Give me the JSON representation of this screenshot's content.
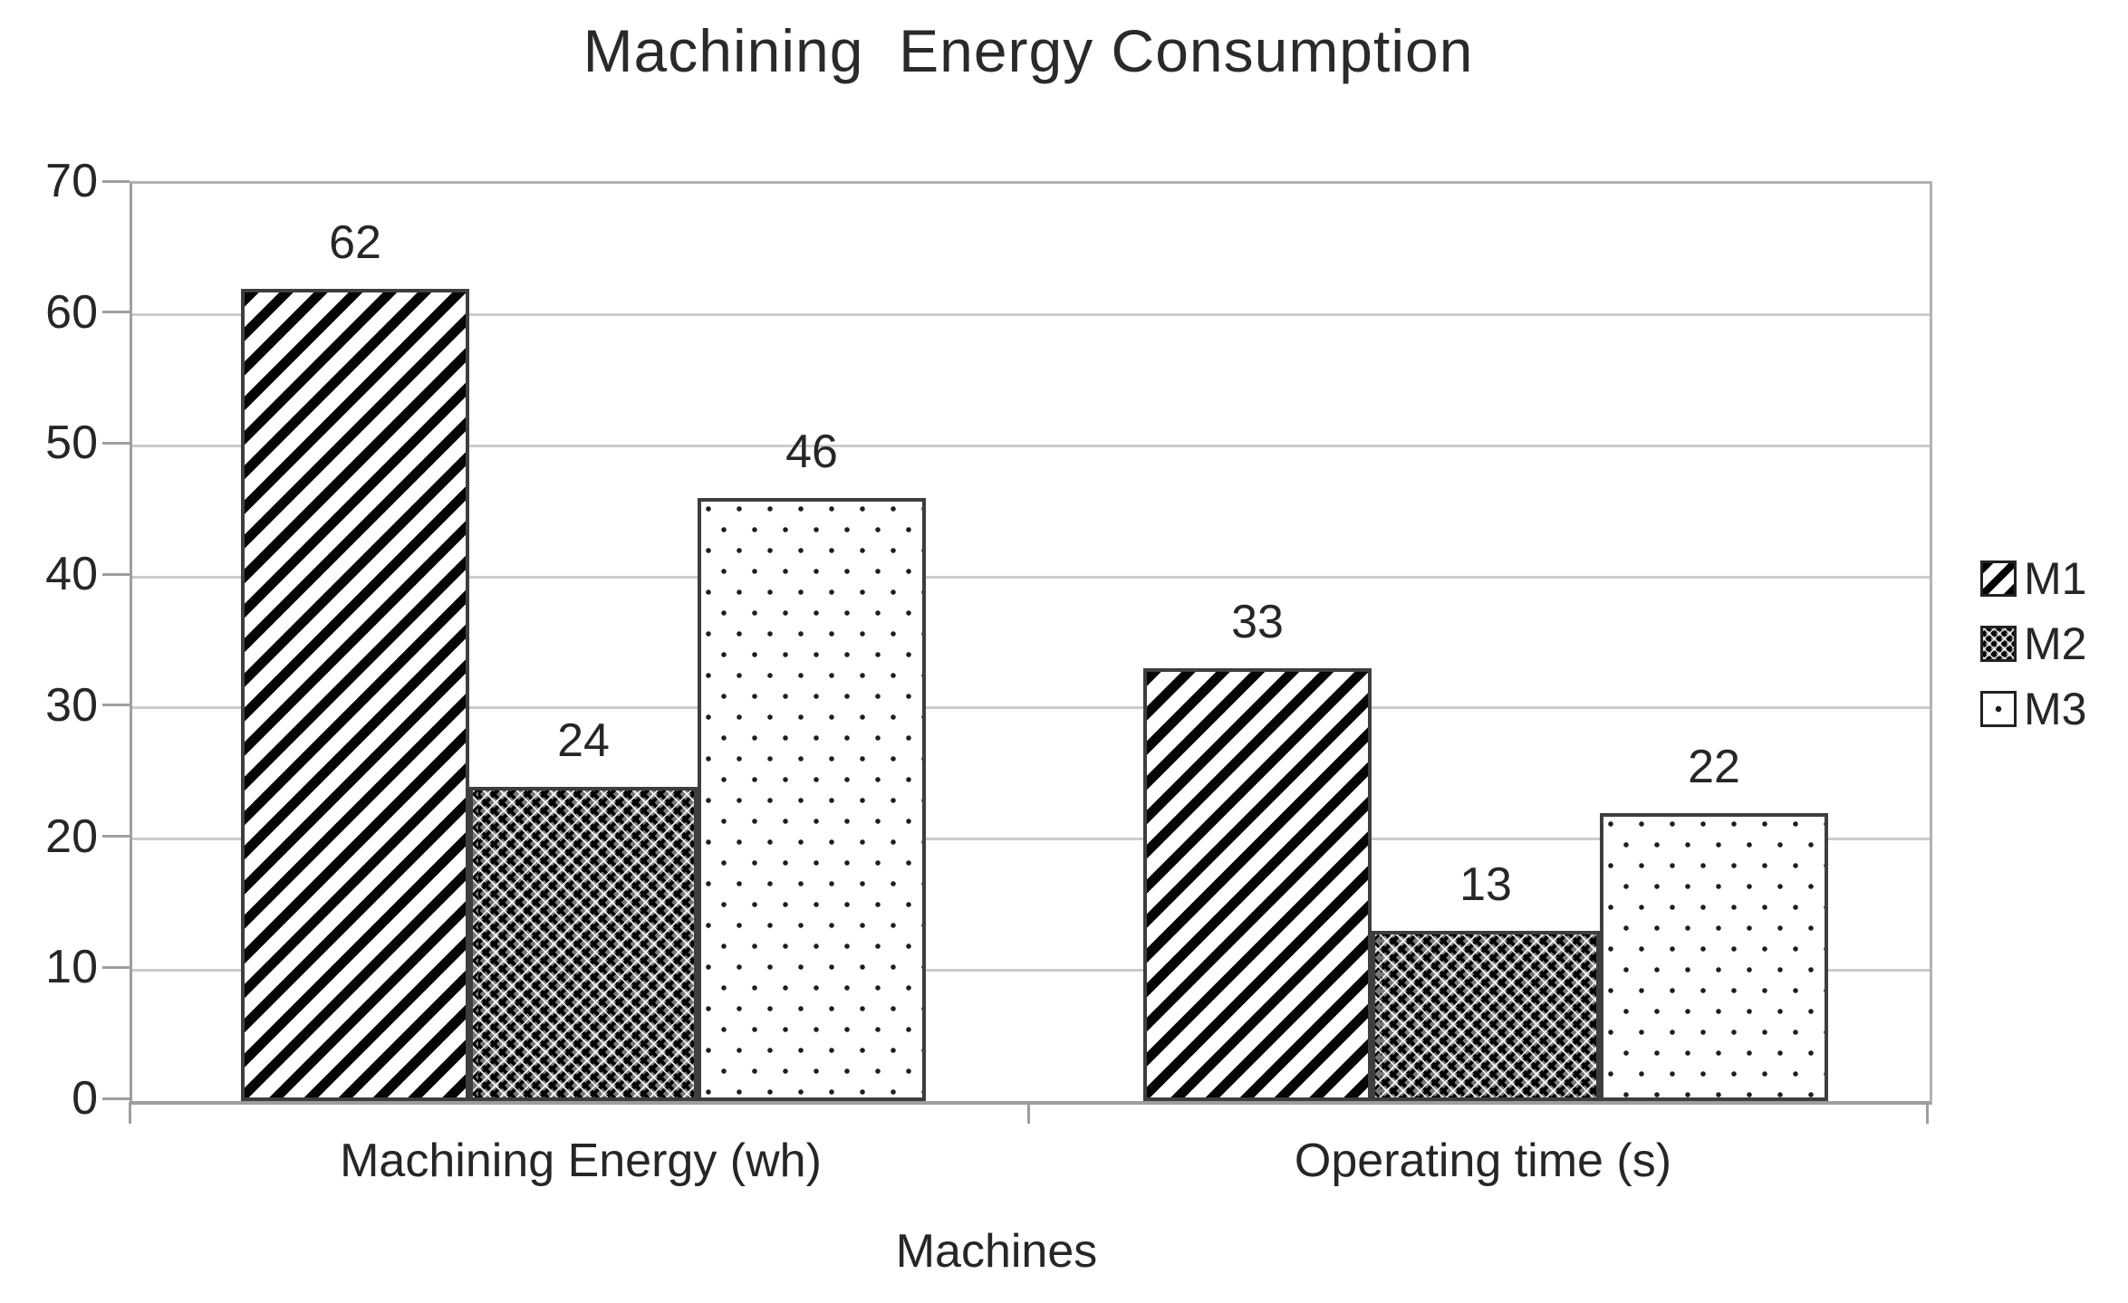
{
  "title": "Machining  Energy Consumption",
  "chart_data": {
    "type": "bar",
    "title": "Machining  Energy Consumption",
    "categories": [
      "Machining Energy (wh)",
      "Operating time (s)"
    ],
    "series": [
      {
        "name": "M1",
        "values": [
          62,
          33
        ],
        "pattern": "diagonal-stripes"
      },
      {
        "name": "M2",
        "values": [
          24,
          13
        ],
        "pattern": "dense-crosshatch"
      },
      {
        "name": "M3",
        "values": [
          46,
          22
        ],
        "pattern": "dot-grid"
      }
    ],
    "xlabel": "Machines",
    "ylabel": "",
    "ylim": [
      0,
      70
    ],
    "yticks": [
      0,
      10,
      20,
      30,
      40,
      50,
      60,
      70
    ],
    "grid": true,
    "legend_position": "right",
    "data_labels_shown": true
  },
  "colors": {
    "background": "#ffffff",
    "text": "#262626",
    "gridline": "#cbcbcb",
    "axis_line": "#9e9e9e",
    "bar_border": "#3e3e3e",
    "pattern_ink": "#000000"
  }
}
